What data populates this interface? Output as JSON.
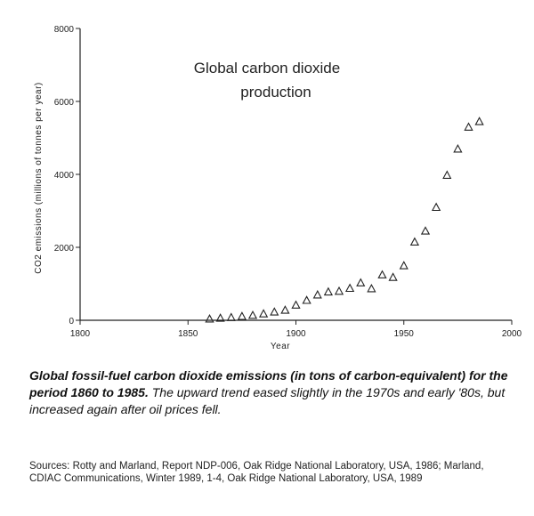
{
  "chart_data": {
    "type": "scatter",
    "title_lines": [
      "Global carbon dioxide",
      "production"
    ],
    "xlabel": "Year",
    "ylabel": "CO2 emissions (millions of tonnes per year)",
    "xlim": [
      1800,
      2000
    ],
    "ylim": [
      0,
      8000
    ],
    "xticks": [
      1800,
      1850,
      1900,
      1950,
      2000
    ],
    "yticks": [
      0,
      2000,
      4000,
      6000,
      8000
    ],
    "marker": "triangle-open",
    "grid": false,
    "points": [
      {
        "x": 1860,
        "y": 40
      },
      {
        "x": 1865,
        "y": 60
      },
      {
        "x": 1870,
        "y": 80
      },
      {
        "x": 1875,
        "y": 110
      },
      {
        "x": 1880,
        "y": 140
      },
      {
        "x": 1885,
        "y": 180
      },
      {
        "x": 1890,
        "y": 230
      },
      {
        "x": 1895,
        "y": 280
      },
      {
        "x": 1900,
        "y": 420
      },
      {
        "x": 1905,
        "y": 550
      },
      {
        "x": 1910,
        "y": 700
      },
      {
        "x": 1915,
        "y": 780
      },
      {
        "x": 1920,
        "y": 800
      },
      {
        "x": 1925,
        "y": 880
      },
      {
        "x": 1930,
        "y": 1030
      },
      {
        "x": 1935,
        "y": 870
      },
      {
        "x": 1940,
        "y": 1250
      },
      {
        "x": 1945,
        "y": 1180
      },
      {
        "x": 1950,
        "y": 1500
      },
      {
        "x": 1955,
        "y": 2150
      },
      {
        "x": 1960,
        "y": 2450
      },
      {
        "x": 1965,
        "y": 3100
      },
      {
        "x": 1970,
        "y": 3980
      },
      {
        "x": 1975,
        "y": 4700
      },
      {
        "x": 1980,
        "y": 5300
      },
      {
        "x": 1985,
        "y": 5450
      }
    ]
  },
  "caption": {
    "lead": "Global fossil-fuel carbon dioxide emissions (in tons of carbon-equivalent) for the period 1860 to 1985.",
    "body": "The upward trend eased slightly in the 1970s and early '80s, but increased again after oil prices fell."
  },
  "sources": {
    "text": "Sources: Rotty and Marland, Report NDP-006, Oak Ridge National Laboratory, USA, 1986; Marland, CDIAC Communications, Winter 1989, 1-4, Oak Ridge National Laboratory, USA, 1989"
  }
}
